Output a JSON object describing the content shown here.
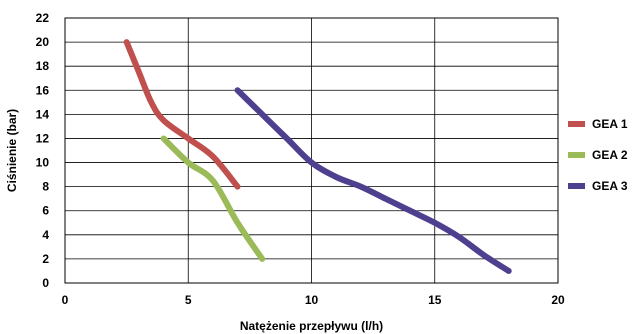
{
  "chart_data": {
    "type": "line",
    "title": "",
    "xlabel": "Natężenie przepływu (l/h)",
    "ylabel": "Ciśnienie (bar)",
    "xlim": [
      0,
      20
    ],
    "ylim": [
      0,
      22
    ],
    "xticks": [
      0,
      5,
      10,
      15,
      20
    ],
    "yticks": [
      0,
      2,
      4,
      6,
      8,
      10,
      12,
      14,
      16,
      18,
      20,
      22
    ],
    "grid": true,
    "legend_position": "right",
    "series": [
      {
        "name": "GEA 1",
        "color": "#c0504d",
        "points": [
          [
            2.5,
            20
          ],
          [
            3.0,
            17.5
          ],
          [
            3.5,
            15
          ],
          [
            4.0,
            13.5
          ],
          [
            5.0,
            12
          ],
          [
            6.0,
            10.5
          ],
          [
            7.0,
            8
          ]
        ]
      },
      {
        "name": "GEA 2",
        "color": "#9bbb59",
        "points": [
          [
            4.0,
            12
          ],
          [
            5.0,
            10
          ],
          [
            6.0,
            8.5
          ],
          [
            7.0,
            5
          ],
          [
            8.0,
            2
          ]
        ]
      },
      {
        "name": "GEA 3",
        "color": "#4f3f8f",
        "points": [
          [
            7.0,
            16
          ],
          [
            8.0,
            14
          ],
          [
            9.0,
            12
          ],
          [
            10.0,
            10
          ],
          [
            11.0,
            8.8
          ],
          [
            12.0,
            8
          ],
          [
            13.0,
            7
          ],
          [
            14.0,
            6
          ],
          [
            15.0,
            5
          ],
          [
            16.0,
            3.8
          ],
          [
            17.0,
            2.3
          ],
          [
            18.0,
            1
          ]
        ]
      }
    ]
  }
}
